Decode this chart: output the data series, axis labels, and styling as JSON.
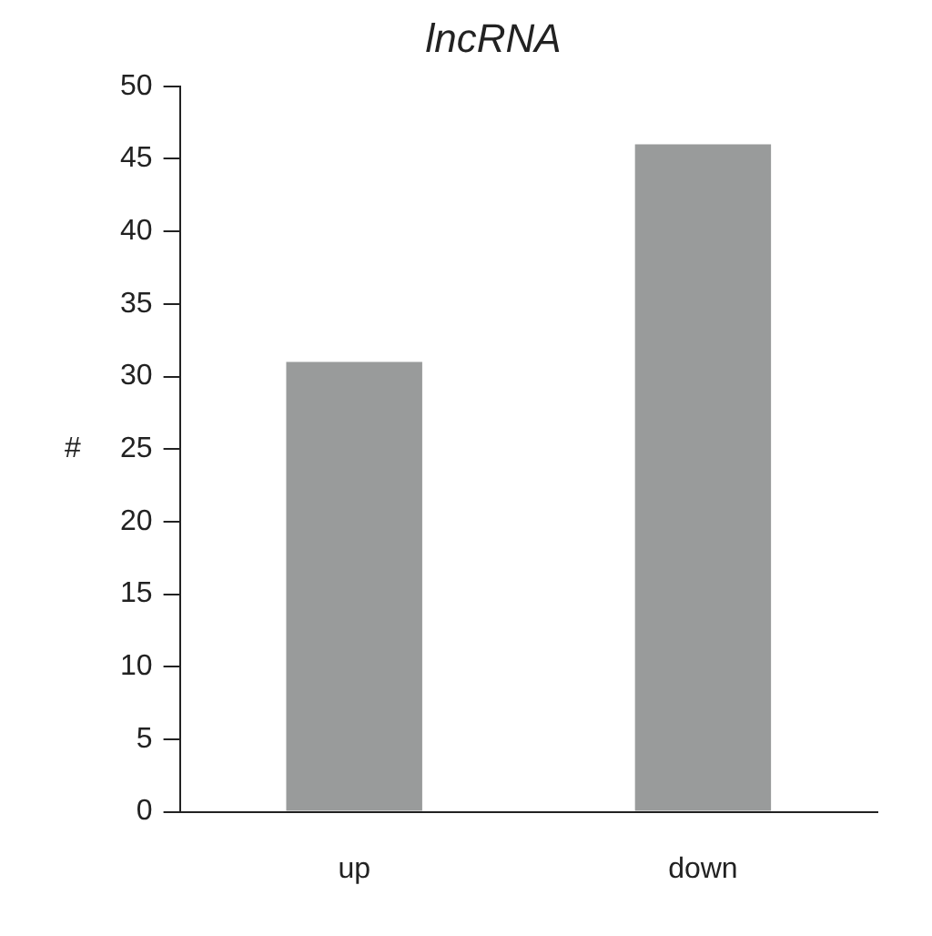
{
  "chart_data": {
    "type": "bar",
    "title": "lncRNA",
    "ylabel": "#",
    "categories": [
      "up",
      "down"
    ],
    "values": [
      31,
      46
    ],
    "color": "#999b9b",
    "ylim": [
      0,
      50
    ],
    "yticks": [
      0,
      5,
      10,
      15,
      20,
      25,
      30,
      35,
      40,
      45,
      50
    ],
    "grid": false
  }
}
